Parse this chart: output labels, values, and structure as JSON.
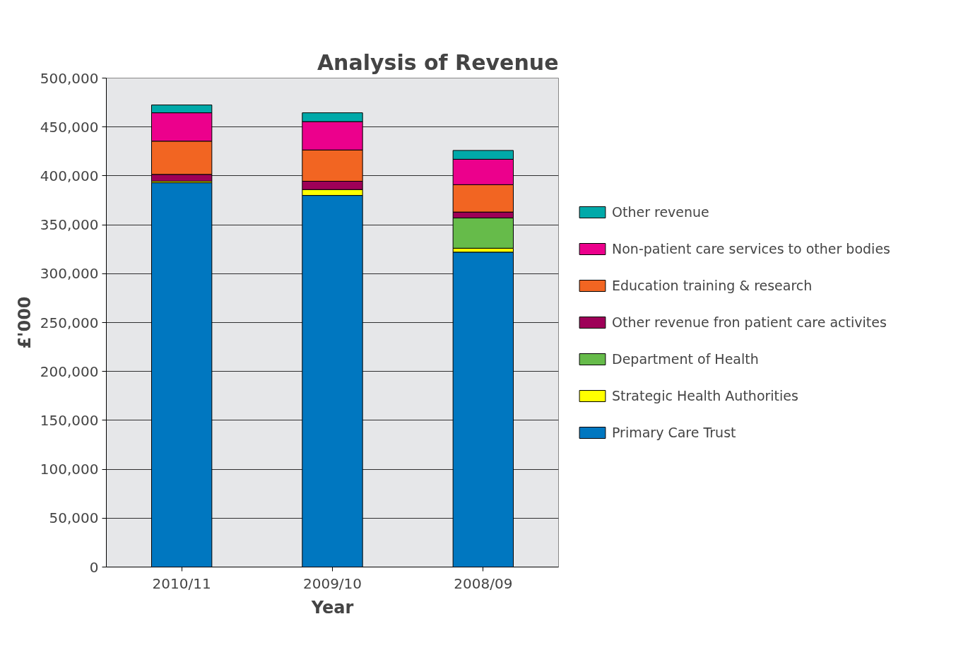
{
  "chart_data": {
    "type": "bar",
    "title": "Analysis of Revenue",
    "xlabel": "Year",
    "ylabel": "£'000",
    "stacked": true,
    "categories": [
      "2010/11",
      "2009/10",
      "2008/09"
    ],
    "series": [
      {
        "name": "Primary Care Trust",
        "color": "#0077c0",
        "values": [
          393000,
          380000,
          322000
        ]
      },
      {
        "name": "Strategic Health Authorities",
        "color": "#ffff00",
        "values": [
          1500,
          6000,
          4000
        ]
      },
      {
        "name": "Department of Health",
        "color": "#66bb4a",
        "values": [
          null,
          null,
          31000
        ]
      },
      {
        "name": "Other revenue fron patient care activites",
        "color": "#9e0058",
        "values": [
          7000,
          8500,
          6000
        ]
      },
      {
        "name": "Education training & research",
        "color": "#f26522",
        "values": [
          34000,
          32000,
          28000
        ]
      },
      {
        "name": "Non-patient care services to other bodies",
        "color": "#ec008c",
        "values": [
          29000,
          29000,
          26000
        ]
      },
      {
        "name": "Other revenue",
        "color": "#00a9a9",
        "values": [
          8000,
          9000,
          9000
        ]
      }
    ],
    "ylim": [
      0,
      500000
    ],
    "yticks": [
      0,
      {
        "value": 50000,
        "label": "50,000"
      },
      {
        "value": 100000,
        "label": "100,000"
      },
      {
        "value": 150000,
        "label": "150,000"
      },
      {
        "value": 200000,
        "label": "200,000"
      },
      {
        "value": 250000,
        "label": "250,000"
      },
      {
        "value": 300000,
        "label": "300,000"
      },
      {
        "value": 350000,
        "label": "350,000"
      },
      {
        "value": 400000,
        "label": "400,000"
      },
      {
        "value": 450000,
        "label": "450,000"
      },
      {
        "value": 500000,
        "label": "500,000"
      }
    ],
    "grid": "y",
    "legend": "right"
  }
}
